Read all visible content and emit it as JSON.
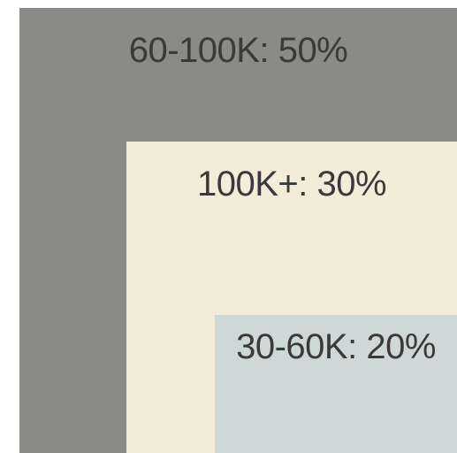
{
  "chart_data": {
    "type": "nested-squares",
    "categories": [
      "60-100K",
      "100K+",
      "30-60K"
    ],
    "values": [
      50,
      30,
      20
    ],
    "labels": [
      "60-100K: 50%",
      "100K+: 30%",
      "30-60K: 20%"
    ],
    "colors": [
      "#8a8a86",
      "#f3ecd9",
      "#cdd8d7"
    ]
  }
}
